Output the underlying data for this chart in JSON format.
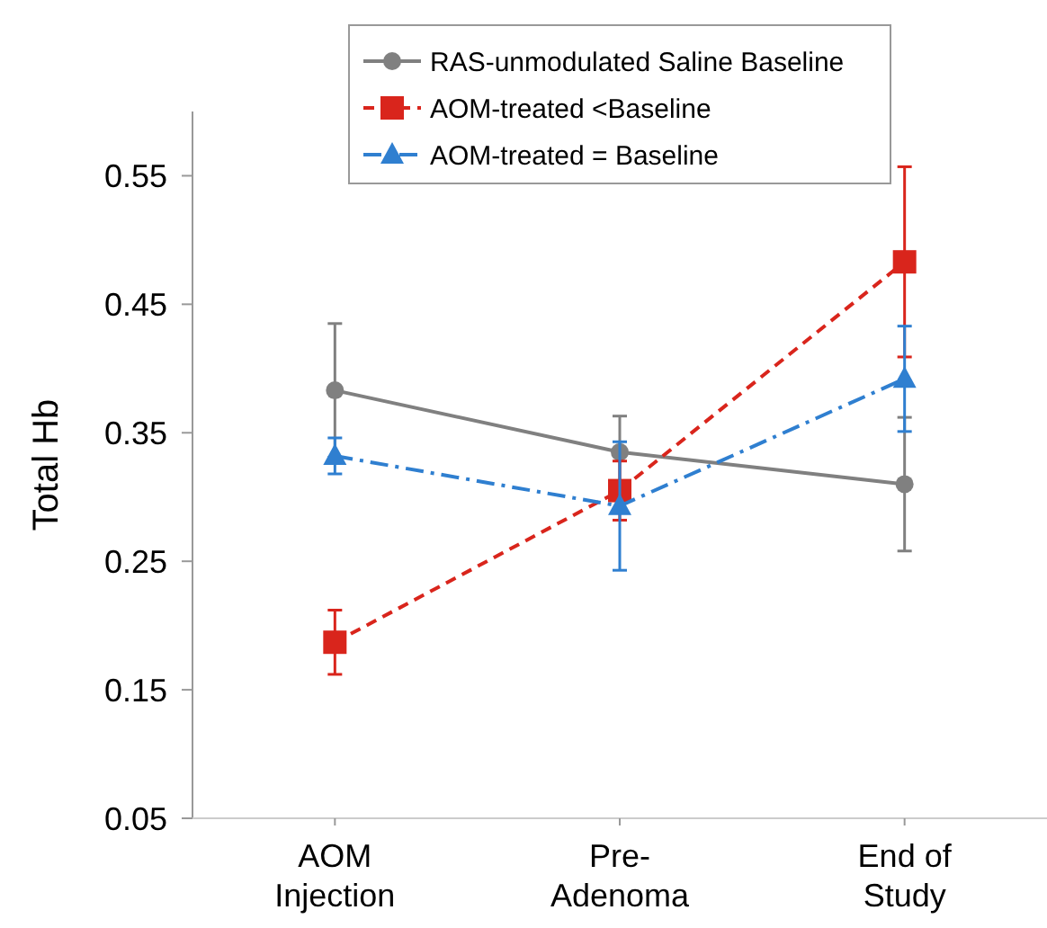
{
  "chart_data": {
    "type": "line",
    "ylabel": "Total Hb",
    "categories": [
      "AOM\nInjection",
      "Pre-\nAdenoma",
      "End of\nStudy"
    ],
    "ylim": [
      0.05,
      0.6
    ],
    "yticks": [
      0.05,
      0.15,
      0.25,
      0.35,
      0.45,
      0.55
    ],
    "grid": false,
    "legend": "top",
    "series": [
      {
        "name": "RAS-unmodulated Saline Baseline",
        "color": "#808080",
        "marker": "circle",
        "line_style": "solid",
        "values": [
          0.383,
          0.335,
          0.31
        ],
        "errors": [
          0.052,
          0.028,
          0.052
        ]
      },
      {
        "name": "AOM-treated <Baseline",
        "color": "#d9251c",
        "marker": "square",
        "line_style": "dashed",
        "values": [
          0.187,
          0.305,
          0.483
        ],
        "errors": [
          0.025,
          0.023,
          0.074
        ]
      },
      {
        "name": "AOM-treated = Baseline",
        "color": "#2f7fd0",
        "marker": "triangle",
        "line_style": "dashdot",
        "values": [
          0.332,
          0.293,
          0.392
        ],
        "errors": [
          0.014,
          0.05,
          0.041
        ]
      }
    ]
  }
}
